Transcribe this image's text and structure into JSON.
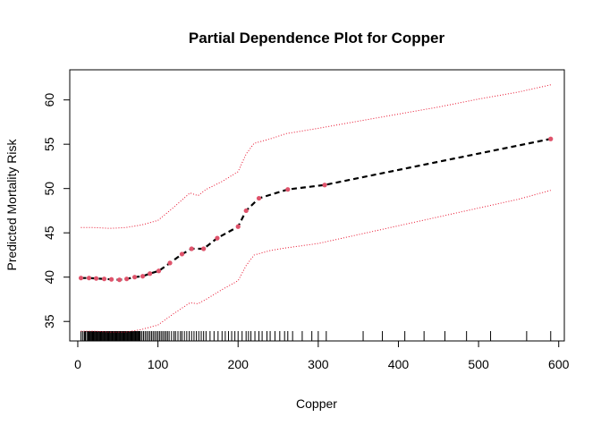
{
  "chart_data": {
    "type": "line",
    "title": "Partial Dependence Plot for Copper",
    "xlabel": "Copper",
    "ylabel": "Predicted Mortality Risk",
    "xlim": [
      -10,
      607
    ],
    "ylim": [
      32.8,
      63.4
    ],
    "x_ticks": [
      0,
      100,
      200,
      300,
      400,
      500,
      600
    ],
    "y_ticks": [
      35,
      40,
      45,
      50,
      55,
      60
    ],
    "grid": false,
    "legend": "none",
    "colors": {
      "pd_line": "#000000",
      "points": "#DF536B",
      "bands": "#E8112D",
      "rug": "#000000"
    },
    "series": [
      {
        "values_x": [
          4,
          14,
          23,
          33,
          42,
          52,
          61,
          71,
          81,
          90,
          101,
          115,
          130,
          142,
          157,
          174,
          200,
          210,
          226,
          262,
          308,
          590
        ],
        "values_y": [
          39.9,
          39.9,
          39.85,
          39.8,
          39.75,
          39.7,
          39.8,
          40.0,
          40.1,
          40.4,
          40.7,
          41.6,
          42.6,
          43.2,
          43.2,
          44.4,
          45.7,
          47.5,
          48.9,
          49.9,
          50.4,
          55.6
        ]
      }
    ],
    "upper_band": {
      "x": [
        4,
        20,
        40,
        60,
        80,
        100,
        120,
        140,
        150,
        160,
        180,
        200,
        210,
        220,
        240,
        260,
        300,
        350,
        400,
        450,
        500,
        550,
        590
      ],
      "y": [
        45.6,
        45.6,
        45.5,
        45.6,
        45.9,
        46.4,
        47.9,
        49.5,
        49.2,
        49.9,
        50.8,
        51.9,
        53.9,
        55.1,
        55.6,
        56.2,
        56.8,
        57.6,
        58.4,
        59.2,
        60.1,
        60.9,
        61.7
      ]
    },
    "lower_band": {
      "x": [
        4,
        20,
        40,
        60,
        80,
        100,
        120,
        140,
        150,
        160,
        180,
        200,
        210,
        220,
        240,
        260,
        300,
        350,
        400,
        450,
        500,
        550,
        590
      ],
      "y": [
        33.9,
        33.9,
        33.8,
        33.8,
        34.1,
        34.6,
        35.9,
        37.1,
        37.0,
        37.5,
        38.6,
        39.6,
        41.3,
        42.5,
        43.0,
        43.3,
        43.8,
        44.8,
        45.8,
        46.8,
        47.8,
        48.8,
        49.8
      ]
    },
    "rug": [
      4,
      6,
      8,
      9,
      10,
      12,
      13,
      14,
      15,
      16,
      17,
      18,
      19,
      20,
      21,
      22,
      23,
      24,
      25,
      26,
      27,
      28,
      29,
      30,
      31,
      32,
      33,
      34,
      35,
      36,
      37,
      38,
      39,
      40,
      41,
      42,
      43,
      44,
      45,
      46,
      47,
      48,
      49,
      50,
      51,
      52,
      53,
      54,
      55,
      56,
      57,
      58,
      59,
      60,
      61,
      62,
      63,
      64,
      65,
      66,
      67,
      68,
      69,
      70,
      71,
      72,
      73,
      74,
      75,
      76,
      77,
      78,
      80,
      82,
      84,
      86,
      88,
      90,
      92,
      94,
      96,
      98,
      100,
      102,
      104,
      106,
      108,
      110,
      112,
      114,
      117,
      120,
      122,
      125,
      128,
      130,
      133,
      136,
      139,
      142,
      145,
      148,
      151,
      154,
      157,
      160,
      165,
      170,
      175,
      180,
      184,
      188,
      192,
      196,
      200,
      205,
      210,
      213,
      216,
      221,
      226,
      230,
      236,
      240,
      246,
      252,
      258,
      262,
      268,
      280,
      292,
      300,
      310,
      356,
      380,
      408,
      432,
      458,
      485,
      515,
      560,
      590
    ]
  }
}
